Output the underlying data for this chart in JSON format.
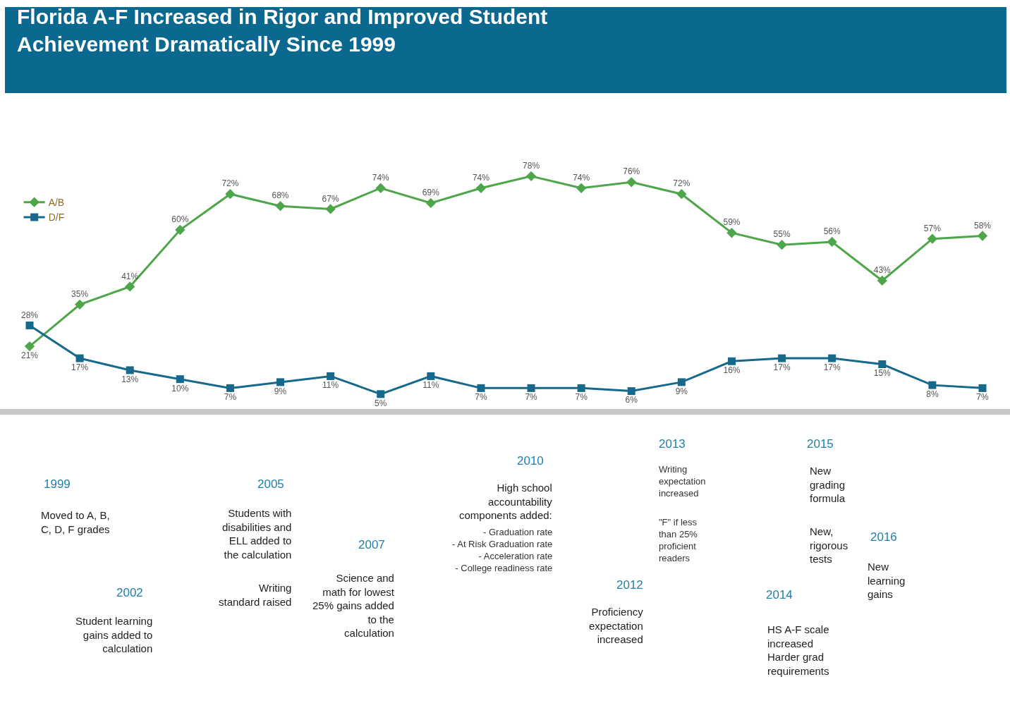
{
  "chart_data": {
    "type": "line",
    "title": "Florida A-F Increased in Rigor and Improved Student\nAchievement Dramatically Since 1999",
    "categories": [
      null,
      null,
      null,
      null,
      null,
      null,
      null,
      null,
      null,
      null,
      null,
      null,
      null,
      null,
      null,
      null,
      null,
      null,
      null,
      null
    ],
    "series": [
      {
        "name": "A/B",
        "color": "#4ea64a",
        "marker": "diamond",
        "values": [
          21,
          35,
          41,
          60,
          72,
          68,
          67,
          74,
          69,
          74,
          78,
          74,
          76,
          72,
          59,
          55,
          56,
          43,
          57,
          58
        ],
        "value_labels": [
          "21%",
          "35%",
          "41%",
          "60%",
          "72%",
          "68%",
          "67%",
          "74%",
          "69%",
          "74%",
          "78%",
          "74%",
          "76%",
          "72%",
          "59%",
          "55%",
          "56%",
          "43%",
          "57%",
          "58%"
        ]
      },
      {
        "name": "D/F",
        "color": "#17698c",
        "marker": "square",
        "values": [
          28,
          17,
          13,
          10,
          7,
          9,
          11,
          5,
          11,
          7,
          7,
          7,
          6,
          9,
          16,
          17,
          17,
          15,
          8,
          7
        ],
        "value_labels": [
          "28%",
          "17%",
          "13%",
          "10%",
          "7%",
          "9%",
          "11%",
          "5%",
          "11%",
          "7%",
          "7%",
          "7%",
          "6%",
          "9%",
          "16%",
          "17%",
          "17%",
          "15%",
          "8%",
          "7%"
        ]
      }
    ],
    "legend": "top left",
    "annotations": [
      "1999",
      "Moved to A, B,\nC, D, F grades",
      "2002",
      "Student learning\ngains added to\ncalculation",
      "2005",
      "Students with\ndisabilities and\nELL added to\nthe calculation",
      "Writing\nstandard raised",
      "2007",
      "Science and\nmath for lowest\n25% gains added\nto the\ncalculation",
      "2010",
      "High school\naccountability\ncomponents added:",
      "- Graduation rate\n- At Risk Graduation rate\n- Acceleration rate\n- College readiness rate",
      "2012",
      "Proficiency\nexpectation\nincreased",
      "2013",
      "Writing\nexpectation\nincreased",
      "\"F\" if less\nthan 25%\nproficient\nreaders",
      "2014",
      "HS A-F scale\nincreased\nHarder grad\nrequirements",
      "2015",
      "New\ngrading\nformula",
      "New,\nrigorous\ntests",
      "2016",
      "New\nlearning\ngains"
    ]
  }
}
